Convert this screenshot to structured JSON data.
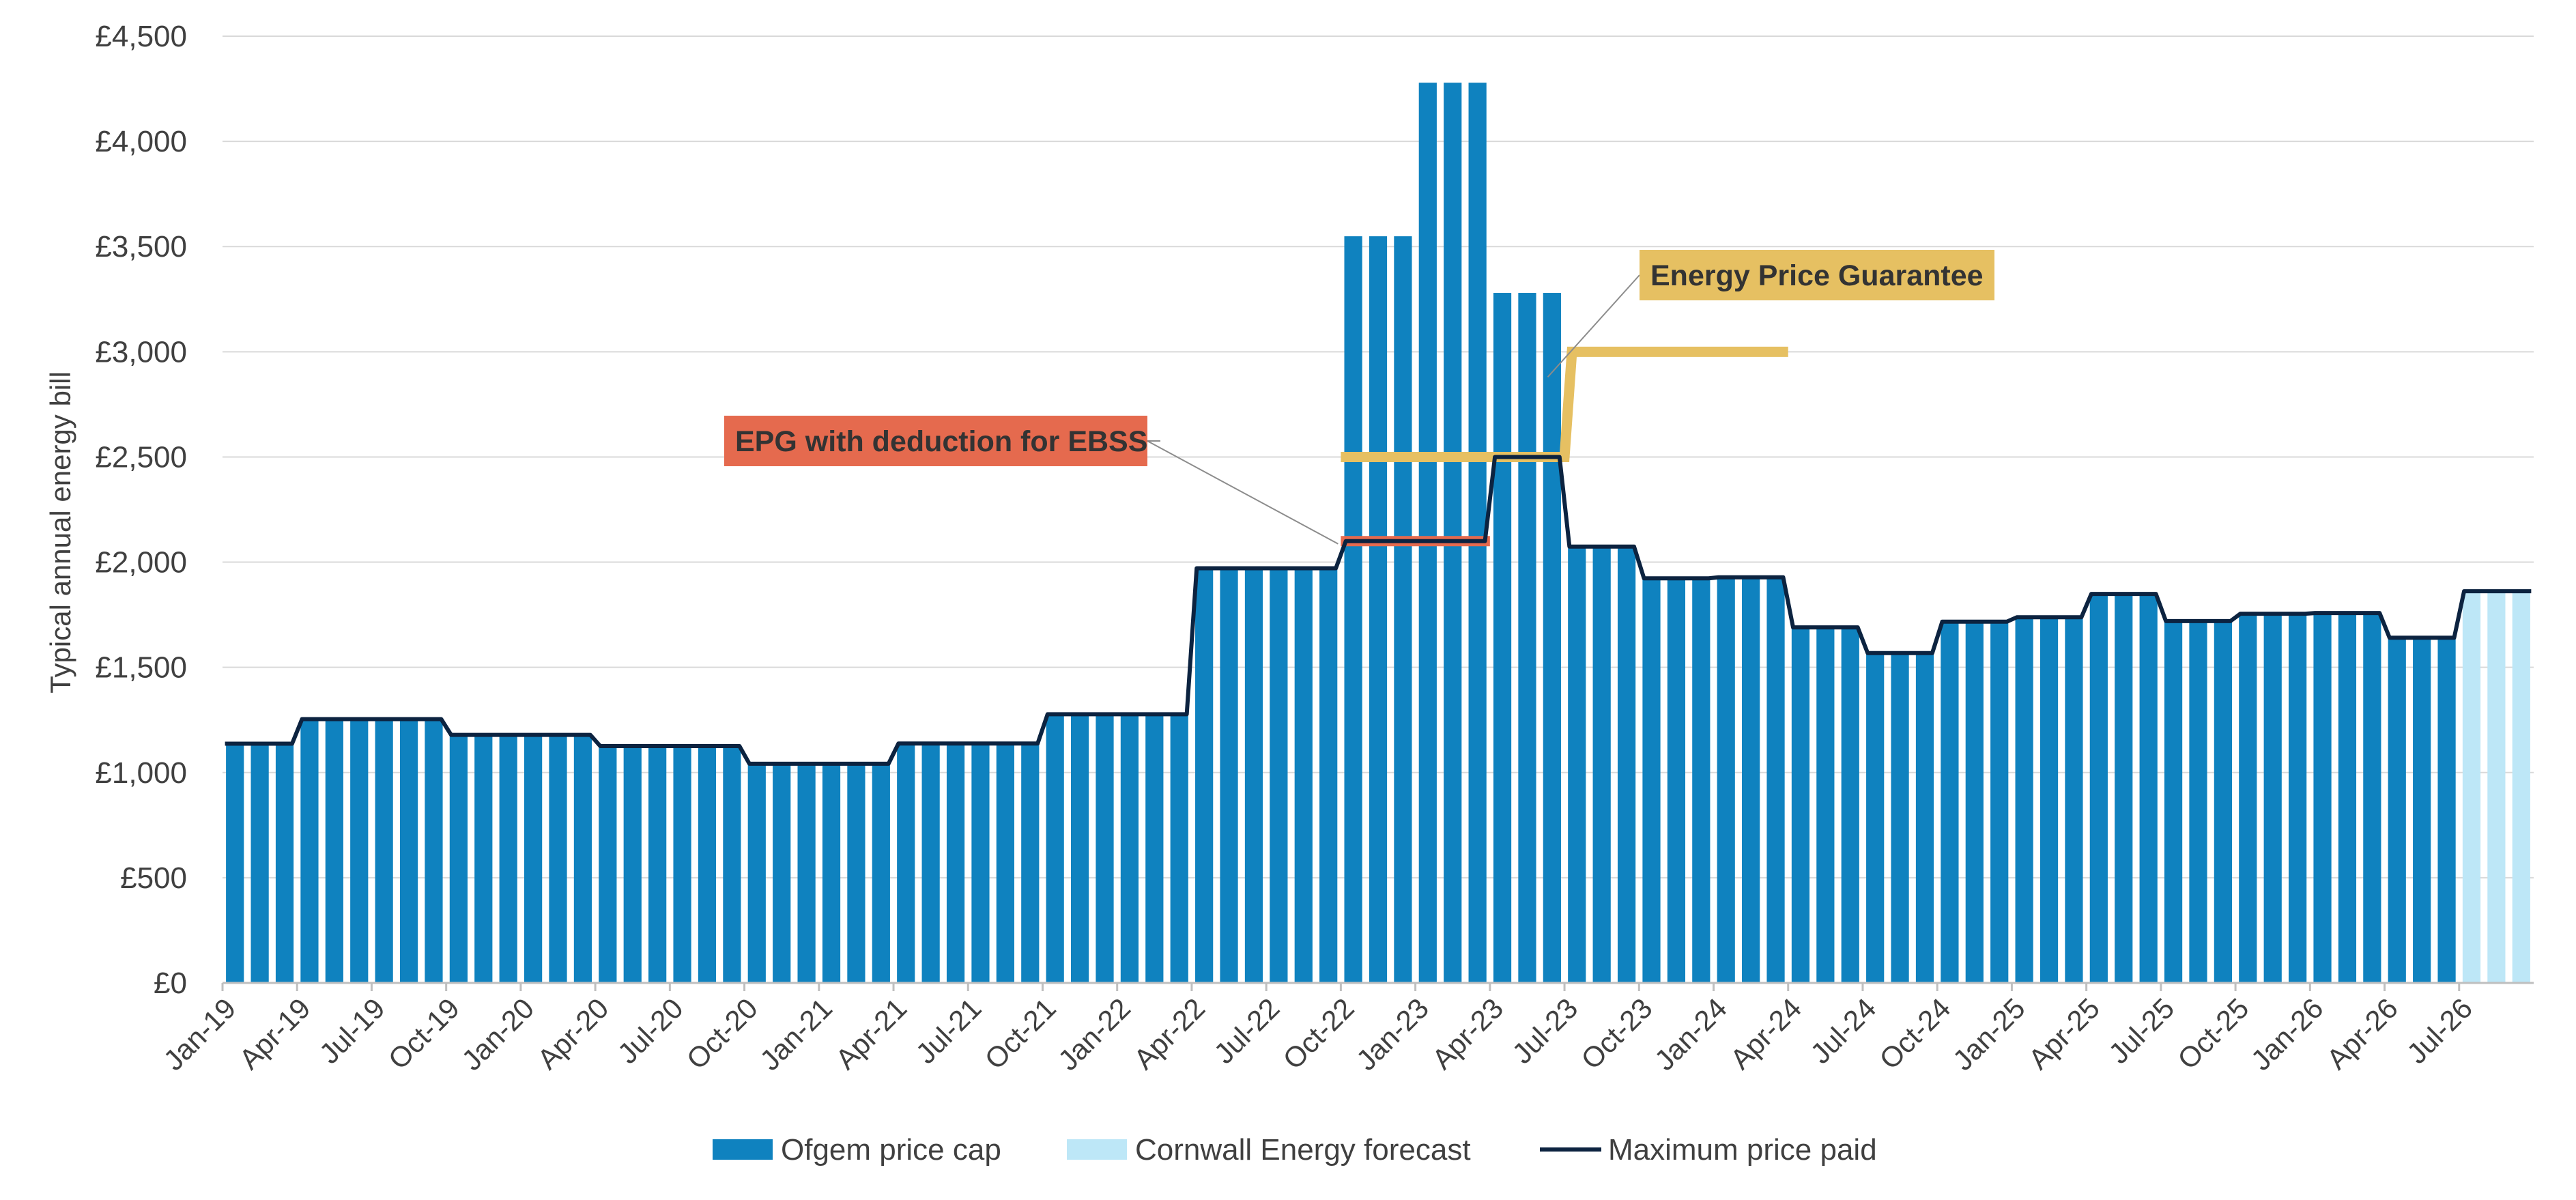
{
  "chart_data": {
    "type": "bar",
    "title": "",
    "xlabel": "",
    "ylabel": "Typical annual energy bill",
    "ylim": [
      0,
      4500
    ],
    "yticks": [
      0,
      500,
      1000,
      1500,
      2000,
      2500,
      3000,
      3500,
      4000,
      4500
    ],
    "ytick_labels": [
      "£0",
      "£500",
      "£1,000",
      "£1,500",
      "£2,000",
      "£2,500",
      "£3,000",
      "£3,500",
      "£4,000",
      "£4,500"
    ],
    "grid": true,
    "x_tick_labels": [
      "Jan-19",
      "Apr-19",
      "Jul-19",
      "Oct-19",
      "Jan-20",
      "Apr-20",
      "Jul-20",
      "Oct-20",
      "Jan-21",
      "Apr-21",
      "Jul-21",
      "Oct-21",
      "Jan-22",
      "Apr-22",
      "Jul-22",
      "Oct-22",
      "Jan-23",
      "Apr-23",
      "Jul-23",
      "Oct-23",
      "Jan-24",
      "Apr-24",
      "Jul-24",
      "Oct-24",
      "Jan-25",
      "Apr-25",
      "Jul-25",
      "Oct-25",
      "Jan-26",
      "Apr-26",
      "Jul-26"
    ],
    "months_start": "Jan-19",
    "forecast_from_index": 90,
    "colors": {
      "ofgem": "#0F82BF",
      "forecast": "#BDE7F7",
      "max_line": "#0C2340",
      "epg": "#E6C062",
      "epg_ebss": "#E56A4E",
      "grid": "#D9D9D9",
      "axis": "#BFBFBF"
    },
    "series": [
      {
        "name": "Ofgem price cap",
        "values": [
          1137,
          1137,
          1137,
          1254,
          1254,
          1254,
          1254,
          1254,
          1254,
          1179,
          1179,
          1179,
          1179,
          1179,
          1179,
          1126,
          1126,
          1126,
          1126,
          1126,
          1126,
          1042,
          1042,
          1042,
          1042,
          1042,
          1042,
          1138,
          1138,
          1138,
          1138,
          1138,
          1138,
          1277,
          1277,
          1277,
          1277,
          1277,
          1277,
          1971,
          1971,
          1971,
          1971,
          1971,
          1971,
          3549,
          3549,
          3549,
          4279,
          4279,
          4279,
          3280,
          3280,
          3280,
          2074,
          2074,
          2074,
          1923,
          1923,
          1923,
          1928,
          1928,
          1928,
          1690,
          1690,
          1690,
          1568,
          1568,
          1568,
          1717,
          1717,
          1717,
          1738,
          1738,
          1738,
          1849,
          1849,
          1849,
          1720,
          1720,
          1720,
          1755,
          1755,
          1755,
          1758,
          1758,
          1758,
          1641,
          1641,
          1641,
          null,
          null,
          null
        ]
      },
      {
        "name": "Cornwall Energy forecast",
        "values": [
          null,
          null,
          null,
          null,
          null,
          null,
          null,
          null,
          null,
          null,
          null,
          null,
          null,
          null,
          null,
          null,
          null,
          null,
          null,
          null,
          null,
          null,
          null,
          null,
          null,
          null,
          null,
          null,
          null,
          null,
          null,
          null,
          null,
          null,
          null,
          null,
          null,
          null,
          null,
          null,
          null,
          null,
          null,
          null,
          null,
          null,
          null,
          null,
          null,
          null,
          null,
          null,
          null,
          null,
          null,
          null,
          null,
          null,
          null,
          null,
          null,
          null,
          null,
          null,
          null,
          null,
          null,
          null,
          null,
          null,
          null,
          null,
          null,
          null,
          null,
          null,
          null,
          null,
          null,
          null,
          null,
          null,
          null,
          null,
          null,
          null,
          null,
          null,
          null,
          null,
          1862,
          1862,
          1862
        ]
      },
      {
        "name": "Maximum price paid",
        "type": "line",
        "values": [
          1137,
          1137,
          1137,
          1254,
          1254,
          1254,
          1254,
          1254,
          1254,
          1179,
          1179,
          1179,
          1179,
          1179,
          1179,
          1126,
          1126,
          1126,
          1126,
          1126,
          1126,
          1042,
          1042,
          1042,
          1042,
          1042,
          1042,
          1138,
          1138,
          1138,
          1138,
          1138,
          1138,
          1277,
          1277,
          1277,
          1277,
          1277,
          1277,
          1971,
          1971,
          1971,
          1971,
          1971,
          1971,
          2100,
          2100,
          2100,
          2100,
          2100,
          2100,
          2500,
          2500,
          2500,
          2074,
          2074,
          2074,
          1923,
          1923,
          1923,
          1928,
          1928,
          1928,
          1690,
          1690,
          1690,
          1568,
          1568,
          1568,
          1717,
          1717,
          1717,
          1738,
          1738,
          1738,
          1849,
          1849,
          1849,
          1720,
          1720,
          1720,
          1755,
          1755,
          1755,
          1758,
          1758,
          1758,
          1641,
          1641,
          1641,
          1862,
          1862,
          1862
        ]
      }
    ],
    "annotations": [
      {
        "label": "Energy Price Guarantee",
        "segments": [
          {
            "x_start": "Oct-22",
            "x_end": "Jun-23",
            "value": 2500
          },
          {
            "x_start": "Jul-23",
            "x_end": "Mar-24",
            "value": 3000
          }
        ]
      },
      {
        "label": "EPG with deduction for EBSS",
        "segments": [
          {
            "x_start": "Oct-22",
            "x_end": "Mar-23",
            "value": 2100
          }
        ]
      }
    ],
    "legend": {
      "position": "bottom",
      "entries": [
        "Ofgem price cap",
        "Cornwall Energy forecast",
        "Maximum price paid"
      ]
    }
  }
}
